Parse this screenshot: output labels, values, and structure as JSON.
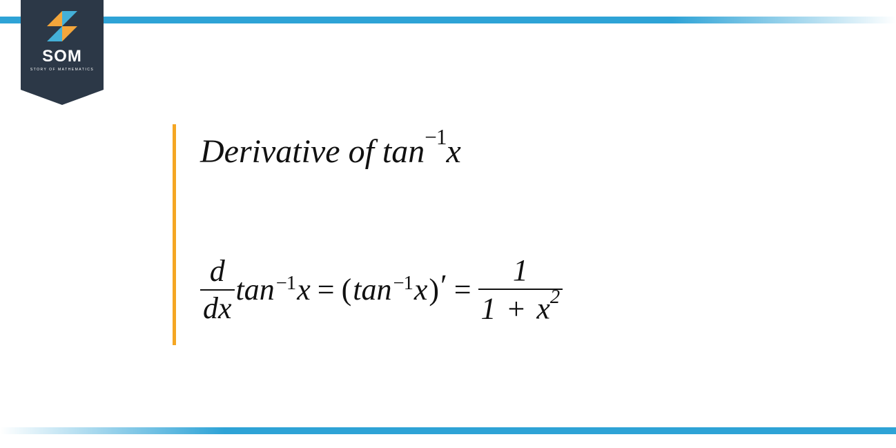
{
  "branding": {
    "logo_text": "SOM",
    "logo_subtext": "STORY OF MATHEMATICS",
    "accent_color": "#2ea3d6",
    "badge_color": "#2c3847",
    "logo_orange": "#f4a63b",
    "logo_blue": "#44b0d8"
  },
  "layout": {
    "divider_color": "#f5a623",
    "text_color": "#111111",
    "background": "#ffffff"
  },
  "content": {
    "title_prefix": "Derivative of ",
    "fn": "tan",
    "exp_neg1": "−1",
    "var": "x",
    "d": "d",
    "dx": "dx",
    "eq": "=",
    "lparen": "(",
    "rparen": ")",
    "prime": "′",
    "one": "1",
    "plus": "+",
    "sq": "2",
    "derivative_plain": "d/dx tan^-1 x = (tan^-1 x)' = 1 / (1 + x^2)"
  }
}
